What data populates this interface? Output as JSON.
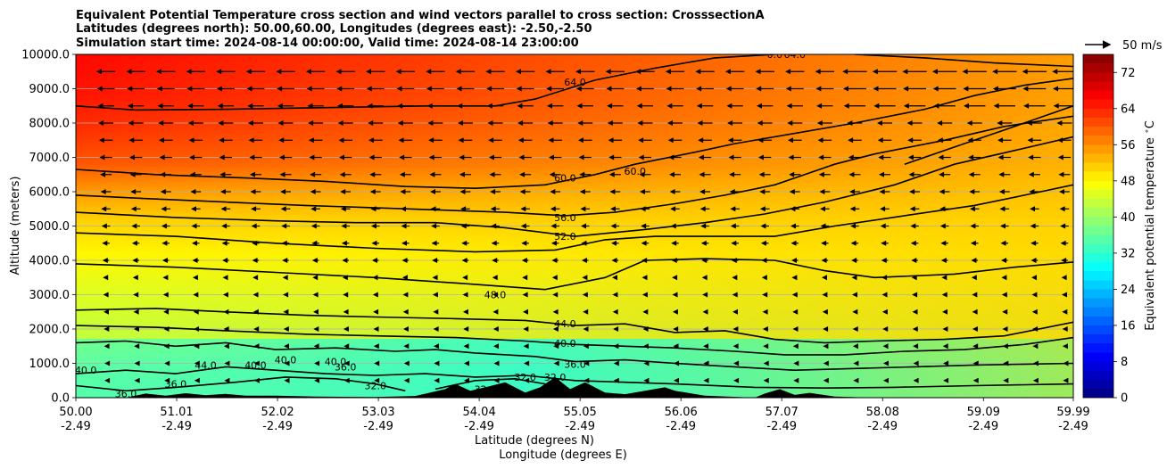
{
  "chart_data": {
    "type": "heatmap",
    "title_lines": [
      "Equivalent Potential Temperature cross section and wind vectors parallel to cross section: CrosssectionA",
      "Latitudes (degrees north): 50.00,60.00, Longitudes (degrees east): -2.50,-2.50",
      "Simulation start time: 2024-08-14 00:00:00, Valid time: 2024-08-14 23:00:00"
    ],
    "ylabel": "Altitude (meters)",
    "xlabel_lat": "Latitude (degrees N)",
    "xlabel_lon": "Longitude (degrees E)",
    "ylim": [
      0,
      10000
    ],
    "yticks": [
      "0.0",
      "1000.0",
      "2000.0",
      "3000.0",
      "4000.0",
      "5000.0",
      "6000.0",
      "7000.0",
      "8000.0",
      "9000.0",
      "10000.0"
    ],
    "ytick_values": [
      0,
      1000,
      2000,
      3000,
      4000,
      5000,
      6000,
      7000,
      8000,
      9000,
      10000
    ],
    "xlim": [
      50.0,
      59.99
    ],
    "xtick_values": [
      50.0,
      51.01,
      52.02,
      53.03,
      54.04,
      55.05,
      56.06,
      57.07,
      58.08,
      59.09,
      59.99
    ],
    "xtick_lat": [
      "50.00",
      "51.01",
      "52.02",
      "53.03",
      "54.04",
      "55.05",
      "56.06",
      "57.07",
      "58.08",
      "59.09",
      "59.99"
    ],
    "xtick_lon": [
      "-2.49",
      "-2.49",
      "-2.49",
      "-2.49",
      "-2.49",
      "-2.49",
      "-2.49",
      "-2.49",
      "-2.49",
      "-2.49",
      "-2.49"
    ],
    "colorbar": {
      "label": "Equivalent potential temperature $^\\circ$C",
      "range": [
        0,
        76
      ],
      "ticks": [
        "0",
        "8",
        "16",
        "24",
        "32",
        "40",
        "48",
        "56",
        "64",
        "72"
      ],
      "tick_values": [
        0,
        8,
        16,
        24,
        32,
        40,
        48,
        56,
        64,
        72
      ]
    },
    "wind_key": "50 m/s",
    "contour_labels": [
      {
        "text": "64.0",
        "lat": 55.0,
        "alt": 9200
      },
      {
        "text": "64.0",
        "lat": 57.2,
        "alt": 10000
      },
      {
        "text": "0.0",
        "lat": 57.0,
        "alt": 10000
      },
      {
        "text": "60.0",
        "lat": 55.6,
        "alt": 6600
      },
      {
        "text": "60.0",
        "lat": 54.9,
        "alt": 6400
      },
      {
        "text": "56.0",
        "lat": 54.9,
        "alt": 5250
      },
      {
        "text": "52.0",
        "lat": 54.9,
        "alt": 4700
      },
      {
        "text": "48.0",
        "lat": 54.2,
        "alt": 3000
      },
      {
        "text": "44.0",
        "lat": 54.9,
        "alt": 2150
      },
      {
        "text": "40.0",
        "lat": 54.9,
        "alt": 1580
      },
      {
        "text": "36.0",
        "lat": 55.0,
        "alt": 980
      },
      {
        "text": "40.0",
        "lat": 52.1,
        "alt": 1100
      },
      {
        "text": "40.0",
        "lat": 50.1,
        "alt": 800
      },
      {
        "text": "44.0",
        "lat": 51.3,
        "alt": 950
      },
      {
        "text": "40.0",
        "lat": 51.8,
        "alt": 950
      },
      {
        "text": "40.0",
        "lat": 52.6,
        "alt": 1050
      },
      {
        "text": "36.0",
        "lat": 52.7,
        "alt": 900
      },
      {
        "text": "36.0",
        "lat": 50.5,
        "alt": 120
      },
      {
        "text": "36.0",
        "lat": 51.0,
        "alt": 400
      },
      {
        "text": "32.0",
        "lat": 53.0,
        "alt": 350
      },
      {
        "text": "32.0",
        "lat": 54.5,
        "alt": 600
      },
      {
        "text": "32.0",
        "lat": 54.1,
        "alt": 250
      },
      {
        "text": "32.0",
        "lat": 54.8,
        "alt": 600
      }
    ],
    "contours": [
      {
        "level": 64,
        "points": [
          [
            50.0,
            8500
          ],
          [
            50.6,
            8380
          ],
          [
            51.5,
            8400
          ],
          [
            52.5,
            8450
          ],
          [
            53.5,
            8500
          ],
          [
            54.2,
            8500
          ],
          [
            54.6,
            8700
          ],
          [
            55.2,
            9250
          ],
          [
            55.8,
            9600
          ],
          [
            56.4,
            9900
          ],
          [
            57.0,
            10000
          ]
        ]
      },
      {
        "level": 64,
        "points": [
          [
            57.8,
            10000
          ],
          [
            58.5,
            9900
          ],
          [
            59.2,
            9750
          ],
          [
            59.99,
            9650
          ]
        ]
      },
      {
        "level": 60,
        "points": [
          [
            50.0,
            6650
          ],
          [
            50.8,
            6500
          ],
          [
            51.7,
            6400
          ],
          [
            52.5,
            6300
          ],
          [
            53.3,
            6150
          ],
          [
            54.0,
            6100
          ],
          [
            54.7,
            6200
          ],
          [
            55.2,
            6500
          ],
          [
            55.6,
            6800
          ],
          [
            56.2,
            7150
          ],
          [
            56.6,
            7400
          ],
          [
            57.2,
            7700
          ],
          [
            57.8,
            8000
          ],
          [
            58.5,
            8400
          ],
          [
            59.0,
            8800
          ],
          [
            59.5,
            9100
          ],
          [
            59.99,
            9300
          ]
        ]
      },
      {
        "level": 60,
        "points": [
          [
            58.3,
            6800
          ],
          [
            58.8,
            7300
          ],
          [
            59.3,
            7800
          ],
          [
            59.99,
            8500
          ]
        ]
      },
      {
        "level": 56,
        "points": [
          [
            50.0,
            5900
          ],
          [
            50.7,
            5800
          ],
          [
            51.5,
            5700
          ],
          [
            52.3,
            5600
          ],
          [
            53.3,
            5500
          ],
          [
            54.3,
            5400
          ],
          [
            54.9,
            5300
          ],
          [
            55.4,
            5400
          ],
          [
            56.0,
            5650
          ],
          [
            56.5,
            5900
          ],
          [
            57.0,
            6200
          ],
          [
            57.3,
            6500
          ],
          [
            57.6,
            6800
          ],
          [
            58.0,
            7100
          ],
          [
            58.7,
            7500
          ],
          [
            59.3,
            7900
          ],
          [
            59.99,
            8200
          ]
        ]
      },
      {
        "level": 52,
        "points": [
          [
            50.0,
            5400
          ],
          [
            51.0,
            5250
          ],
          [
            52.0,
            5150
          ],
          [
            52.8,
            5100
          ],
          [
            53.6,
            5100
          ],
          [
            54.3,
            4950
          ],
          [
            55.0,
            4700
          ],
          [
            55.7,
            4900
          ],
          [
            56.3,
            5100
          ],
          [
            56.9,
            5350
          ],
          [
            57.5,
            5700
          ],
          [
            58.2,
            6200
          ],
          [
            58.8,
            6800
          ],
          [
            59.4,
            7200
          ],
          [
            59.99,
            7600
          ]
        ]
      },
      {
        "level": 48,
        "points": [
          [
            50.0,
            4800
          ],
          [
            51.0,
            4700
          ],
          [
            52.0,
            4500
          ],
          [
            53.0,
            4350
          ],
          [
            54.0,
            4250
          ],
          [
            54.8,
            4300
          ],
          [
            55.3,
            4600
          ],
          [
            55.8,
            4700
          ],
          [
            56.3,
            4700
          ],
          [
            57.0,
            4700
          ],
          [
            57.6,
            5000
          ],
          [
            58.3,
            5300
          ],
          [
            59.0,
            5600
          ],
          [
            59.5,
            5900
          ],
          [
            59.99,
            6200
          ]
        ]
      },
      {
        "level": 48,
        "points": [
          [
            50.0,
            3900
          ],
          [
            51.0,
            3800
          ],
          [
            52.0,
            3650
          ],
          [
            53.0,
            3500
          ],
          [
            54.0,
            3300
          ],
          [
            54.7,
            3150
          ],
          [
            55.3,
            3500
          ],
          [
            55.7,
            4000
          ],
          [
            56.3,
            4050
          ],
          [
            57.0,
            4000
          ],
          [
            57.5,
            3700
          ],
          [
            58.0,
            3500
          ],
          [
            58.8,
            3600
          ],
          [
            59.4,
            3800
          ],
          [
            59.99,
            3950
          ]
        ]
      },
      {
        "level": 44,
        "points": [
          [
            50.0,
            2550
          ],
          [
            50.8,
            2600
          ],
          [
            51.5,
            2500
          ],
          [
            52.3,
            2400
          ],
          [
            53.0,
            2350
          ],
          [
            53.8,
            2300
          ],
          [
            54.5,
            2250
          ],
          [
            55.0,
            2100
          ],
          [
            55.5,
            2150
          ],
          [
            56.0,
            1900
          ],
          [
            56.5,
            1950
          ],
          [
            57.0,
            1700
          ],
          [
            57.5,
            1600
          ],
          [
            58.0,
            1650
          ],
          [
            58.7,
            1700
          ],
          [
            59.3,
            1800
          ],
          [
            59.99,
            2200
          ]
        ]
      },
      {
        "level": 40,
        "points": [
          [
            50.0,
            2100
          ],
          [
            50.8,
            2050
          ],
          [
            51.5,
            1950
          ],
          [
            52.3,
            1850
          ],
          [
            53.0,
            1800
          ],
          [
            53.8,
            1750
          ],
          [
            54.5,
            1650
          ],
          [
            55.0,
            1550
          ],
          [
            55.5,
            1500
          ],
          [
            56.0,
            1450
          ],
          [
            56.6,
            1350
          ],
          [
            57.1,
            1250
          ],
          [
            57.7,
            1250
          ],
          [
            58.3,
            1350
          ],
          [
            58.9,
            1400
          ],
          [
            59.5,
            1550
          ],
          [
            59.99,
            1750
          ]
        ]
      },
      {
        "level": 36,
        "points": [
          [
            50.0,
            1600
          ],
          [
            50.5,
            1650
          ],
          [
            51.0,
            1500
          ],
          [
            51.5,
            1600
          ],
          [
            52.0,
            1400
          ],
          [
            52.6,
            1450
          ],
          [
            53.2,
            1350
          ],
          [
            53.6,
            1400
          ],
          [
            54.0,
            1300
          ],
          [
            54.6,
            1200
          ],
          [
            55.0,
            1050
          ],
          [
            55.5,
            1100
          ],
          [
            56.0,
            1000
          ],
          [
            56.6,
            900
          ],
          [
            57.2,
            800
          ],
          [
            57.8,
            850
          ],
          [
            58.4,
            900
          ],
          [
            59.0,
            950
          ],
          [
            59.99,
            1000
          ]
        ]
      },
      {
        "level": 32,
        "points": [
          [
            50.0,
            700
          ],
          [
            50.5,
            800
          ],
          [
            51.0,
            700
          ],
          [
            51.5,
            900
          ],
          [
            52.0,
            800
          ],
          [
            52.5,
            700
          ],
          [
            53.0,
            650
          ],
          [
            53.5,
            700
          ],
          [
            54.0,
            600
          ],
          [
            54.5,
            650
          ],
          [
            55.0,
            500
          ],
          [
            55.5,
            450
          ],
          [
            56.0,
            400
          ],
          [
            56.8,
            300
          ],
          [
            57.5,
            280
          ],
          [
            58.2,
            300
          ],
          [
            59.0,
            350
          ],
          [
            59.99,
            400
          ]
        ]
      },
      {
        "level": 36,
        "points": [
          [
            50.0,
            350
          ],
          [
            50.5,
            200
          ],
          [
            51.0,
            300
          ],
          [
            51.6,
            450
          ],
          [
            52.1,
            600
          ],
          [
            52.6,
            550
          ],
          [
            53.0,
            400
          ],
          [
            53.3,
            200
          ]
        ]
      },
      {
        "level": 32,
        "points": [
          [
            53.6,
            250
          ],
          [
            54.0,
            500
          ],
          [
            54.4,
            550
          ],
          [
            54.7,
            400
          ],
          [
            55.0,
            200
          ],
          [
            55.3,
            100
          ],
          [
            55.8,
            50
          ]
        ]
      }
    ],
    "terrain": [
      [
        50.0,
        0
      ],
      [
        50.5,
        0
      ],
      [
        50.7,
        120
      ],
      [
        50.9,
        60
      ],
      [
        51.1,
        130
      ],
      [
        51.3,
        70
      ],
      [
        51.5,
        110
      ],
      [
        51.7,
        60
      ],
      [
        52.0,
        60
      ],
      [
        52.4,
        30
      ],
      [
        53.0,
        20
      ],
      [
        53.4,
        50
      ],
      [
        53.7,
        250
      ],
      [
        53.8,
        400
      ],
      [
        53.95,
        200
      ],
      [
        54.1,
        300
      ],
      [
        54.3,
        450
      ],
      [
        54.5,
        150
      ],
      [
        54.65,
        300
      ],
      [
        54.8,
        600
      ],
      [
        54.95,
        250
      ],
      [
        55.1,
        450
      ],
      [
        55.3,
        150
      ],
      [
        55.5,
        100
      ],
      [
        55.7,
        200
      ],
      [
        55.9,
        300
      ],
      [
        56.0,
        200
      ],
      [
        56.3,
        60
      ],
      [
        56.8,
        0
      ],
      [
        56.9,
        120
      ],
      [
        57.05,
        250
      ],
      [
        57.2,
        80
      ],
      [
        57.35,
        140
      ],
      [
        57.6,
        30
      ],
      [
        58.0,
        0
      ],
      [
        59.99,
        0
      ]
    ],
    "wind_grid": {
      "lats": [
        50.3,
        50.6,
        50.9,
        51.2,
        51.5,
        51.8,
        52.1,
        52.4,
        52.7,
        53.0,
        53.3,
        53.6,
        53.9,
        54.2,
        54.5,
        54.8,
        55.1,
        55.4,
        55.7,
        56.0,
        56.3,
        56.6,
        56.9,
        57.2,
        57.5,
        57.8,
        58.1,
        58.4,
        58.7,
        59.0,
        59.3,
        59.6,
        59.9
      ],
      "alts": [
        9500,
        9000,
        8500,
        8000,
        7500,
        7000,
        6500,
        6000,
        5500,
        5000,
        4500,
        4000,
        3500,
        3000,
        2500,
        2000,
        1500,
        1000,
        500
      ]
    }
  }
}
